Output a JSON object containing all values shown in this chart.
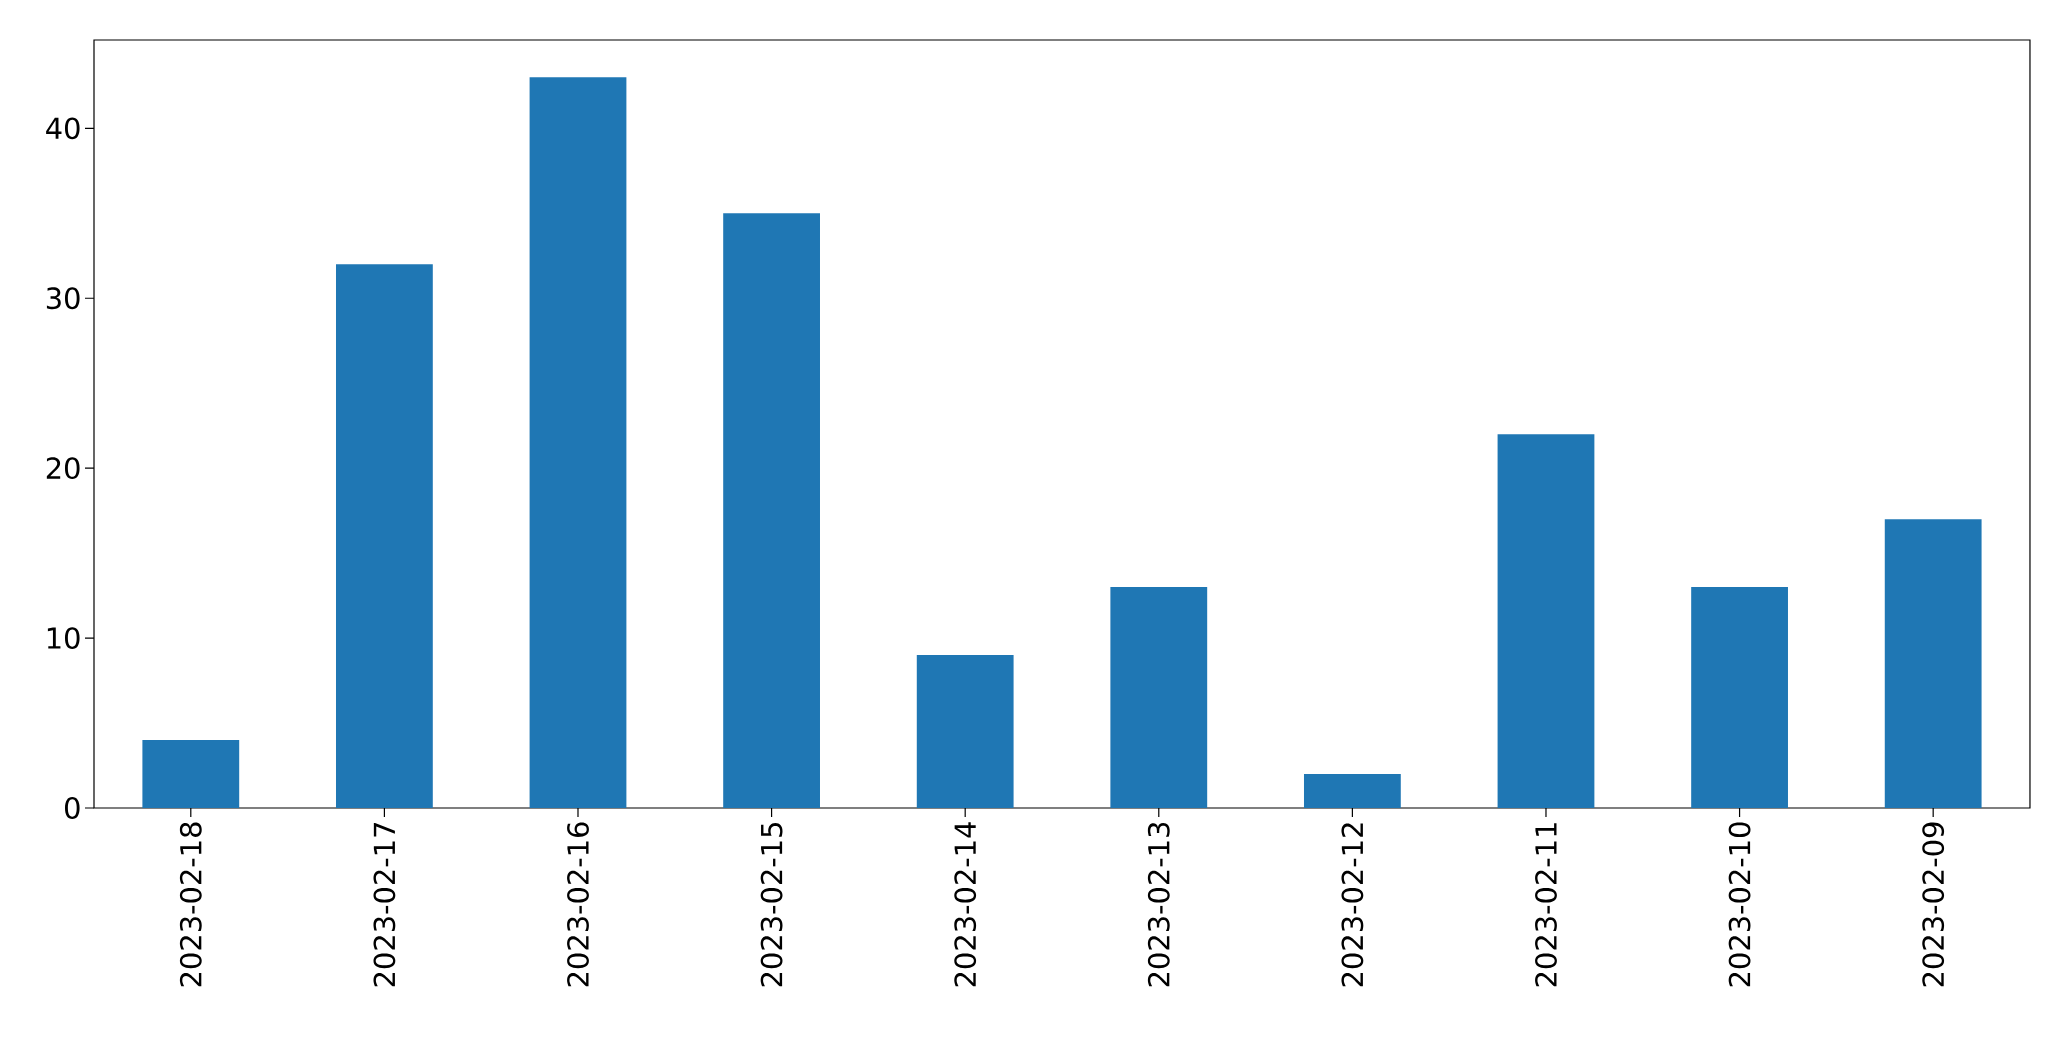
{
  "chart_data": {
    "type": "bar",
    "categories": [
      "2023-02-18",
      "2023-02-17",
      "2023-02-16",
      "2023-02-15",
      "2023-02-14",
      "2023-02-13",
      "2023-02-12",
      "2023-02-11",
      "2023-02-10",
      "2023-02-09"
    ],
    "values": [
      4,
      32,
      43,
      35,
      9,
      13,
      2,
      22,
      13,
      17
    ],
    "color": "#1f77b4",
    "ylim": [
      0,
      45.2
    ],
    "yticks": [
      0,
      10,
      20,
      30,
      40
    ]
  }
}
